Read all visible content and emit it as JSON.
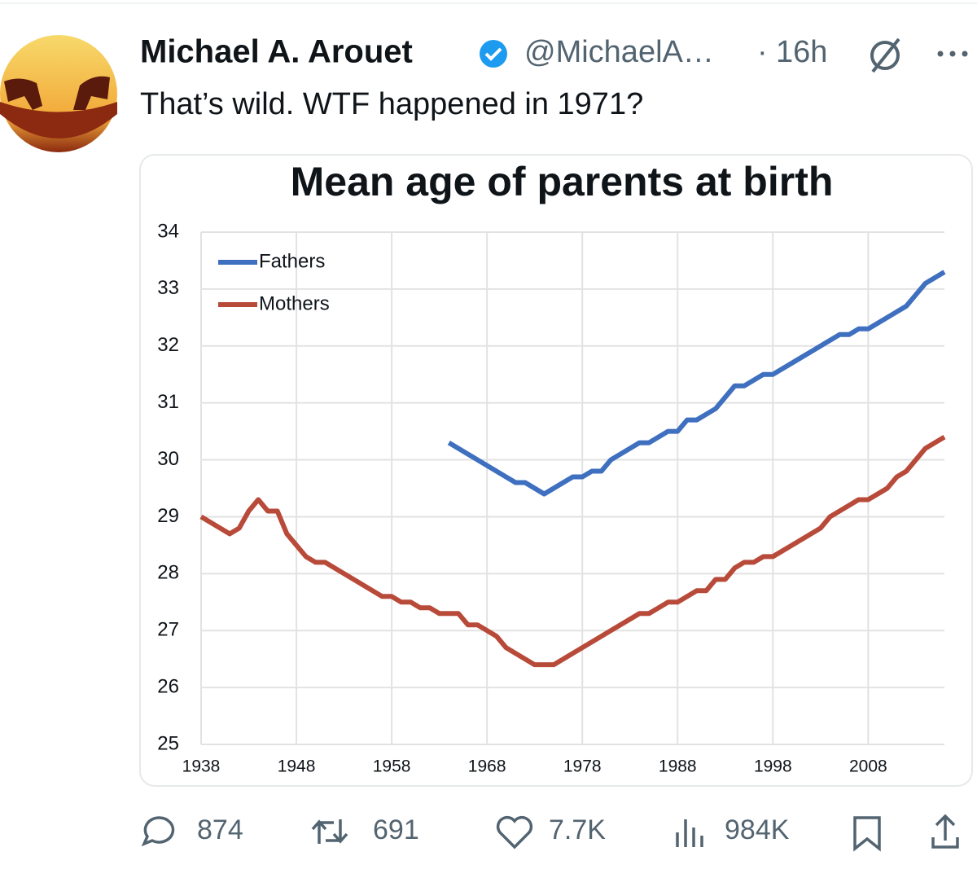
{
  "tweet": {
    "name": "Michael A. Arouet",
    "handle": "@MichaelA…",
    "separator": "·",
    "time": "16h",
    "text": "That’s wild. WTF happened in 1971?",
    "stats": {
      "replies": "874",
      "reposts": "691",
      "likes": "7.7K",
      "views": "984K"
    }
  },
  "chart_data": {
    "type": "line",
    "title": "Mean age of parents at birth",
    "x": [
      1938,
      1939,
      1940,
      1941,
      1942,
      1943,
      1944,
      1945,
      1946,
      1947,
      1948,
      1949,
      1950,
      1951,
      1952,
      1953,
      1954,
      1955,
      1956,
      1957,
      1958,
      1959,
      1960,
      1961,
      1962,
      1963,
      1964,
      1965,
      1966,
      1967,
      1968,
      1969,
      1970,
      1971,
      1972,
      1973,
      1974,
      1975,
      1976,
      1977,
      1978,
      1979,
      1980,
      1981,
      1982,
      1983,
      1984,
      1985,
      1986,
      1987,
      1988,
      1989,
      1990,
      1991,
      1992,
      1993,
      1994,
      1995,
      1996,
      1997,
      1998,
      1999,
      2000,
      2001,
      2002,
      2003,
      2004,
      2005,
      2006,
      2007,
      2008,
      2009,
      2010,
      2011,
      2012,
      2013,
      2014,
      2015,
      2016
    ],
    "series": [
      {
        "name": "Fathers",
        "color": "#3f6fbf",
        "values": [
          null,
          null,
          null,
          null,
          null,
          null,
          null,
          null,
          null,
          null,
          null,
          null,
          null,
          null,
          null,
          null,
          null,
          null,
          null,
          null,
          null,
          null,
          null,
          null,
          null,
          null,
          30.3,
          30.2,
          30.1,
          30.0,
          29.9,
          29.8,
          29.7,
          29.6,
          29.6,
          29.5,
          29.4,
          29.5,
          29.6,
          29.7,
          29.7,
          29.8,
          29.8,
          30.0,
          30.1,
          30.2,
          30.3,
          30.3,
          30.4,
          30.5,
          30.5,
          30.7,
          30.7,
          30.8,
          30.9,
          31.1,
          31.3,
          31.3,
          31.4,
          31.5,
          31.5,
          31.6,
          31.7,
          31.8,
          31.9,
          32.0,
          32.1,
          32.2,
          32.2,
          32.3,
          32.3,
          32.4,
          32.5,
          32.6,
          32.7,
          32.9,
          33.1,
          33.2,
          33.3
        ]
      },
      {
        "name": "Mothers",
        "color": "#b84a3a",
        "values": [
          29.0,
          28.9,
          28.8,
          28.7,
          28.8,
          29.1,
          29.3,
          29.1,
          29.1,
          28.7,
          28.5,
          28.3,
          28.2,
          28.2,
          28.1,
          28.0,
          27.9,
          27.8,
          27.7,
          27.6,
          27.6,
          27.5,
          27.5,
          27.4,
          27.4,
          27.3,
          27.3,
          27.3,
          27.1,
          27.1,
          27.0,
          26.9,
          26.7,
          26.6,
          26.5,
          26.4,
          26.4,
          26.4,
          26.5,
          26.6,
          26.7,
          26.8,
          26.9,
          27.0,
          27.1,
          27.2,
          27.3,
          27.3,
          27.4,
          27.5,
          27.5,
          27.6,
          27.7,
          27.7,
          27.9,
          27.9,
          28.1,
          28.2,
          28.2,
          28.3,
          28.3,
          28.4,
          28.5,
          28.6,
          28.7,
          28.8,
          29.0,
          29.1,
          29.2,
          29.3,
          29.3,
          29.4,
          29.5,
          29.7,
          29.8,
          30.0,
          30.2,
          30.3,
          30.4
        ]
      }
    ],
    "xlim": [
      1938,
      2016
    ],
    "xticks": [
      1938,
      1948,
      1958,
      1968,
      1978,
      1988,
      1998,
      2008
    ],
    "ylim": [
      25,
      34
    ],
    "yticks": [
      25,
      26,
      27,
      28,
      29,
      30,
      31,
      32,
      33,
      34
    ],
    "grid": true
  }
}
